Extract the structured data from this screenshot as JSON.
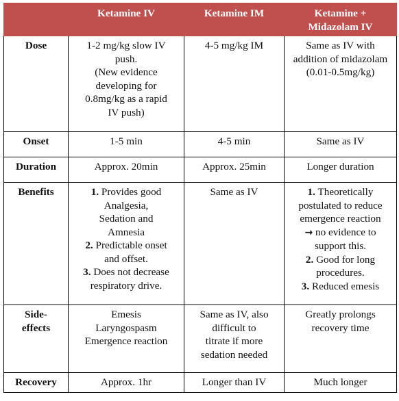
{
  "headers": [
    "",
    "Ketamine IV",
    "Ketamine IM",
    "Ketamine + Midazolam IV"
  ],
  "rows": {
    "dose": {
      "label": "Dose",
      "iv": [
        "1-2 mg/kg slow IV",
        "push.",
        "(New evidence",
        "developing for",
        "0.8mg/kg as a rapid",
        "IV push)"
      ],
      "im": [
        "4-5 mg/kg IM"
      ],
      "combo": [
        "Same as IV with",
        "addition of midazolam",
        "(0.01-0.5mg/kg)"
      ]
    },
    "onset": {
      "label": "Onset",
      "iv": "1-5 min",
      "im": "4-5 min",
      "combo": "Same as IV"
    },
    "duration": {
      "label": "Duration",
      "iv": "Approx. 20min",
      "im": "Approx. 25min",
      "combo": "Longer duration"
    },
    "benefits": {
      "label": "Benefits",
      "iv": [
        {
          "num": "1.",
          "text": "Provides good"
        },
        {
          "num": "",
          "text": "Analgesia,"
        },
        {
          "num": "",
          "text": "Sedation and"
        },
        {
          "num": "",
          "text": "Amnesia"
        },
        {
          "num": "2.",
          "text": "Predictable onset"
        },
        {
          "num": "",
          "text": "and offset."
        },
        {
          "num": "3.",
          "text": "Does not decrease"
        },
        {
          "num": "",
          "text": "respiratory drive."
        }
      ],
      "im": "Same as IV",
      "combo": [
        {
          "num": "1.",
          "text": "Theoretically"
        },
        {
          "num": "",
          "text": "postulated to reduce"
        },
        {
          "num": "",
          "text": "emergence reaction"
        },
        {
          "num": "→",
          "text": "no evidence to"
        },
        {
          "num": "",
          "text": "support this."
        },
        {
          "num": "2.",
          "text": "Good for long"
        },
        {
          "num": "",
          "text": "procedures."
        },
        {
          "num": "3.",
          "text": "Reduced emesis"
        }
      ]
    },
    "side_effects": {
      "label": [
        "Side-",
        "effects"
      ],
      "iv": [
        "Emesis",
        "Laryngospasm",
        "Emergence reaction"
      ],
      "im": [
        "Same as IV, also",
        "difficult to",
        "titrate if more",
        "sedation needed"
      ],
      "combo": [
        "Greatly prolongs",
        "recovery time"
      ]
    },
    "recovery": {
      "label": "Recovery",
      "iv": "Approx. 1hr",
      "im": "Longer than IV",
      "combo": "Much longer"
    }
  },
  "colors": {
    "header_bg": "#c0504d",
    "header_text": "#ffffff",
    "border": "#000000"
  }
}
